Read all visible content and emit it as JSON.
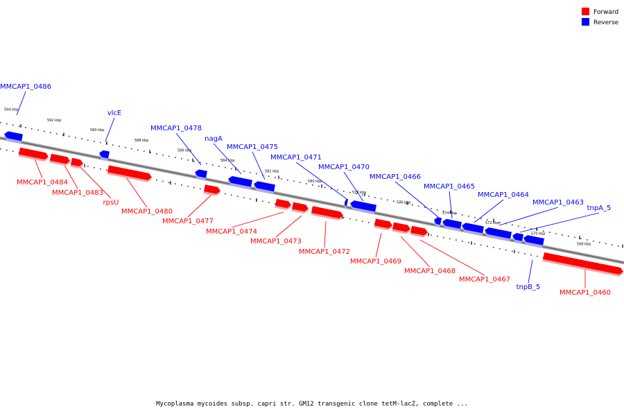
{
  "legend": [
    {
      "label": "Forward",
      "color": "#ff0000"
    },
    {
      "label": "Reverse",
      "color": "#0000ff"
    }
  ],
  "caption": "Mycoplasma mycoides subsp. capri str. GM12 transgenic clone tetM-lacZ, complete ...",
  "colors": {
    "forward": "#ff0000",
    "reverse": "#0000ff",
    "backbone": "#8a8a8a"
  },
  "scale_ticks": [
    "594 kbp",
    "592 kbp",
    "590 kbp",
    "588 kbp",
    "586 kbp",
    "584 kbp",
    "582 kbp",
    "580 kbp",
    "578 kbp",
    "576 kbp",
    "574 kbp",
    "572 kbp",
    "570 kbp",
    "568 kbp"
  ],
  "genes": [
    {
      "name": "MMCAP1_0486",
      "strand": "reverse"
    },
    {
      "name": "vlcE",
      "strand": "reverse"
    },
    {
      "name": "MMCAP1_0478",
      "strand": "reverse"
    },
    {
      "name": "nagA",
      "strand": "reverse"
    },
    {
      "name": "MMCAP1_0475",
      "strand": "reverse"
    },
    {
      "name": "MMCAP1_0471",
      "strand": "reverse"
    },
    {
      "name": "MMCAP1_0470",
      "strand": "reverse"
    },
    {
      "name": "MMCAP1_0466",
      "strand": "reverse"
    },
    {
      "name": "MMCAP1_0465",
      "strand": "reverse"
    },
    {
      "name": "MMCAP1_0464",
      "strand": "reverse"
    },
    {
      "name": "MMCAP1_0463",
      "strand": "reverse"
    },
    {
      "name": "tnpA_5",
      "strand": "reverse"
    },
    {
      "name": "tnpB_5",
      "strand": "reverse"
    },
    {
      "name": "MMCAP1_0484",
      "strand": "forward"
    },
    {
      "name": "MMCAP1_0483",
      "strand": "forward"
    },
    {
      "name": "rpsU",
      "strand": "forward"
    },
    {
      "name": "MMCAP1_0480",
      "strand": "forward"
    },
    {
      "name": "MMCAP1_0477",
      "strand": "forward"
    },
    {
      "name": "MMCAP1_0474",
      "strand": "forward"
    },
    {
      "name": "MMCAP1_0473",
      "strand": "forward"
    },
    {
      "name": "MMCAP1_0472",
      "strand": "forward"
    },
    {
      "name": "MMCAP1_0469",
      "strand": "forward"
    },
    {
      "name": "MMCAP1_0468",
      "strand": "forward"
    },
    {
      "name": "MMCAP1_0467",
      "strand": "forward"
    },
    {
      "name": "MMCAP1_0460",
      "strand": "forward"
    }
  ]
}
